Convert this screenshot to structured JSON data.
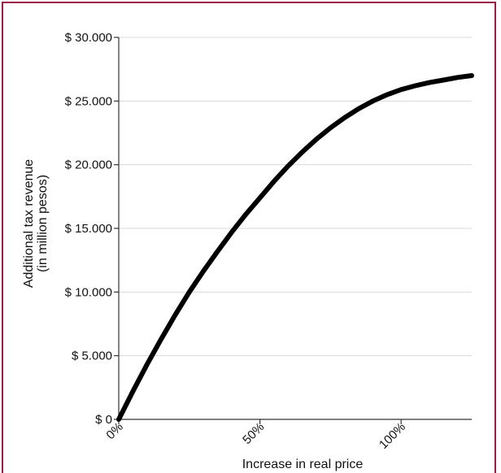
{
  "colors": {
    "frame_border": "#9b1b45",
    "curve": "#000000",
    "grid": "#d8d8d8"
  },
  "chart_data": {
    "type": "line",
    "title": "",
    "xlabel": "Increase in real price",
    "ylabel_lines": [
      "Additional tax revenue",
      "(in million pesos)"
    ],
    "y_ticks": [
      {
        "value": 0,
        "label": "$ 0"
      },
      {
        "value": 5000,
        "label": "$ 5.000"
      },
      {
        "value": 10000,
        "label": "$ 10.000"
      },
      {
        "value": 15000,
        "label": "$ 15.000"
      },
      {
        "value": 20000,
        "label": "$ 20.000"
      },
      {
        "value": 25000,
        "label": "$ 25.000"
      },
      {
        "value": 30000,
        "label": "$ 30.000"
      }
    ],
    "x_ticks": [
      {
        "value": 0,
        "label": "0%"
      },
      {
        "value": 50,
        "label": "50%"
      },
      {
        "value": 100,
        "label": "100%"
      }
    ],
    "xlim": [
      0,
      125
    ],
    "ylim": [
      0,
      30000
    ],
    "grid": true,
    "series": [
      {
        "x": [
          0,
          5,
          10,
          15,
          20,
          25,
          30,
          35,
          40,
          45,
          50,
          55,
          60,
          65,
          70,
          75,
          80,
          85,
          90,
          95,
          100,
          105,
          110,
          115,
          120,
          125
        ],
        "y": [
          0,
          2200,
          4300,
          6300,
          8200,
          10000,
          11650,
          13200,
          14700,
          16100,
          17400,
          18700,
          19900,
          21000,
          22000,
          22900,
          23700,
          24400,
          25000,
          25500,
          25900,
          26200,
          26450,
          26650,
          26850,
          27000
        ]
      }
    ]
  }
}
